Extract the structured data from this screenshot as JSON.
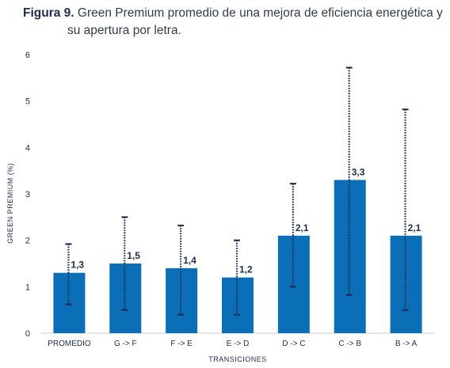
{
  "title": {
    "prefix": "Figura 9.",
    "line1": "Green Premium promedio de una mejora de eficiencia energética y",
    "line2": "su apertura por letra."
  },
  "chart_data": {
    "type": "bar",
    "xlabel": "TRANSICIONES",
    "ylabel": "GREEN PREMIUM (%)",
    "ylim": [
      0,
      6
    ],
    "yticks": [
      0,
      1,
      2,
      3,
      4,
      5,
      6
    ],
    "categories": [
      "PROMEDIO",
      "G -> F",
      "F -> E",
      "E -> D",
      "D -> C",
      "C -> B",
      "B -> A"
    ],
    "values": [
      1.3,
      1.5,
      1.4,
      1.2,
      2.1,
      3.3,
      2.1
    ],
    "value_labels": [
      "1,3",
      "1,5",
      "1,4",
      "1,2",
      "2,1",
      "3,3",
      "2,1"
    ],
    "error_low": [
      0.62,
      0.5,
      0.4,
      0.4,
      1.0,
      0.82,
      0.5
    ],
    "error_high": [
      1.92,
      2.5,
      2.32,
      2.0,
      3.22,
      5.72,
      4.82
    ],
    "grid": false,
    "colors": {
      "bar": "#0b6fb8",
      "error": "#1d2b4f",
      "axis": "#c8ccd4"
    }
  }
}
